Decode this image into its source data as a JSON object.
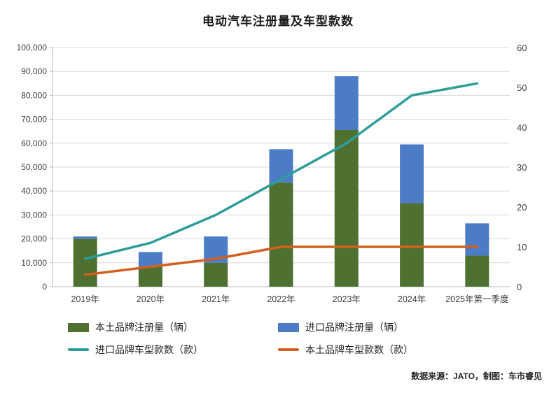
{
  "title": "电动汽车注册量及车型款数",
  "footer": "数据来源：JATO，制图：车市睿见",
  "chart_data": {
    "type": "bar+line",
    "title": "电动汽车注册量及车型款数",
    "categories": [
      "2019年",
      "2020年",
      "2021年",
      "2022年",
      "2023年",
      "2024年",
      "2025年第一季度"
    ],
    "bar_series": [
      {
        "name": "本土品牌注册量（辆）",
        "color": "#4e7031",
        "axis": "left",
        "values": [
          20000,
          8500,
          10000,
          43500,
          65500,
          35000,
          13000
        ]
      },
      {
        "name": "进口品牌注册量（辆）",
        "color": "#4d7cc7",
        "axis": "left",
        "values": [
          1000,
          6000,
          11000,
          14000,
          22500,
          24500,
          13500
        ]
      }
    ],
    "line_series": [
      {
        "name": "进口品牌车型款数（款）",
        "color": "#2e9d9a",
        "axis": "right",
        "values": [
          7,
          11,
          18,
          27,
          36,
          48,
          51
        ]
      },
      {
        "name": "本土品牌车型款数（款）",
        "color": "#d2601e",
        "axis": "right",
        "values": [
          3,
          5,
          7,
          10,
          10,
          10,
          10
        ]
      }
    ],
    "left_axis": {
      "min": 0,
      "max": 100000,
      "step": 10000,
      "tick_labels": [
        "0",
        "10,000",
        "20,000",
        "30,000",
        "40,000",
        "50,000",
        "60,000",
        "70,000",
        "80,000",
        "90,000",
        "100,000"
      ]
    },
    "right_axis": {
      "min": 0,
      "max": 60,
      "step": 10,
      "tick_labels": [
        "0",
        "10",
        "20",
        "30",
        "40",
        "50",
        "60"
      ]
    },
    "grid": true,
    "stacked": true,
    "legend_position": "bottom"
  }
}
